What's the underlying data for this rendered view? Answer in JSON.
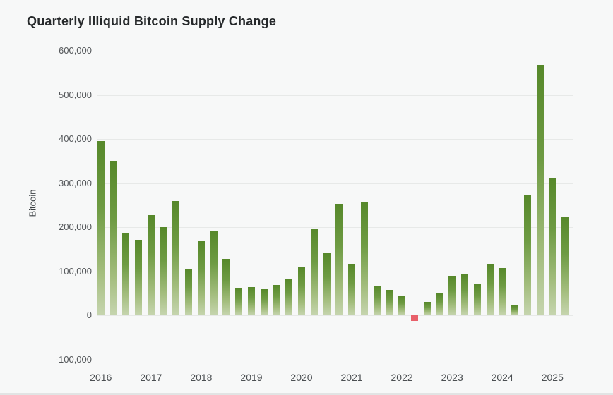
{
  "page": {
    "background_color": "#f7f8f8",
    "bottom_divider_color": "#e2e4e4"
  },
  "chart": {
    "title": "Quarterly Illiquid Bitcoin Supply Change",
    "y_axis_title": "Bitcoin",
    "y_tick_labels": [
      "600,000",
      "500,000",
      "400,000",
      "300,000",
      "200,000",
      "100,000",
      "0",
      "-100,000"
    ],
    "x_tick_labels": [
      "2016",
      "2017",
      "2018",
      "2019",
      "2020",
      "2021",
      "2022",
      "2023",
      "2024",
      "2025"
    ]
  },
  "chart_data": {
    "type": "bar",
    "title": "Quarterly Illiquid Bitcoin Supply Change",
    "xlabel": "",
    "ylabel": "Bitcoin",
    "ylim": [
      -100000,
      600000
    ],
    "grid": true,
    "legend": false,
    "y_tick_values": [
      600000,
      500000,
      400000,
      300000,
      200000,
      100000,
      0,
      -100000
    ],
    "categories": [
      "2016 Q1",
      "2016 Q2",
      "2016 Q3",
      "2016 Q4",
      "2017 Q1",
      "2017 Q2",
      "2017 Q3",
      "2017 Q4",
      "2018 Q1",
      "2018 Q2",
      "2018 Q3",
      "2018 Q4",
      "2019 Q1",
      "2019 Q2",
      "2019 Q3",
      "2019 Q4",
      "2020 Q1",
      "2020 Q2",
      "2020 Q3",
      "2020 Q4",
      "2021 Q1",
      "2021 Q2",
      "2021 Q3",
      "2021 Q4",
      "2022 Q1",
      "2022 Q2",
      "2022 Q3",
      "2022 Q4",
      "2023 Q1",
      "2023 Q2",
      "2023 Q3",
      "2023 Q4",
      "2024 Q1",
      "2024 Q2",
      "2024 Q3",
      "2024 Q4",
      "2025 Q1",
      "2025 Q2"
    ],
    "values": [
      396000,
      350000,
      187000,
      171000,
      227000,
      201000,
      260000,
      106000,
      168000,
      192000,
      128000,
      62000,
      65000,
      60000,
      70000,
      82000,
      110000,
      197000,
      141000,
      253000,
      118000,
      258000,
      68000,
      58000,
      44000,
      -12000,
      31000,
      50000,
      91000,
      94000,
      71000,
      118000,
      108000,
      23000,
      272000,
      568000,
      312000,
      224000
    ],
    "positive_bar_gradient_top": "#56882a",
    "positive_bar_gradient_bottom": "#c6d5af",
    "negative_bar_color": "#e8606a",
    "gridline_color": "#e7e9e8",
    "x_tick_year_first_quarter_indices": [
      0,
      4,
      8,
      12,
      16,
      20,
      24,
      28,
      32,
      36
    ]
  }
}
